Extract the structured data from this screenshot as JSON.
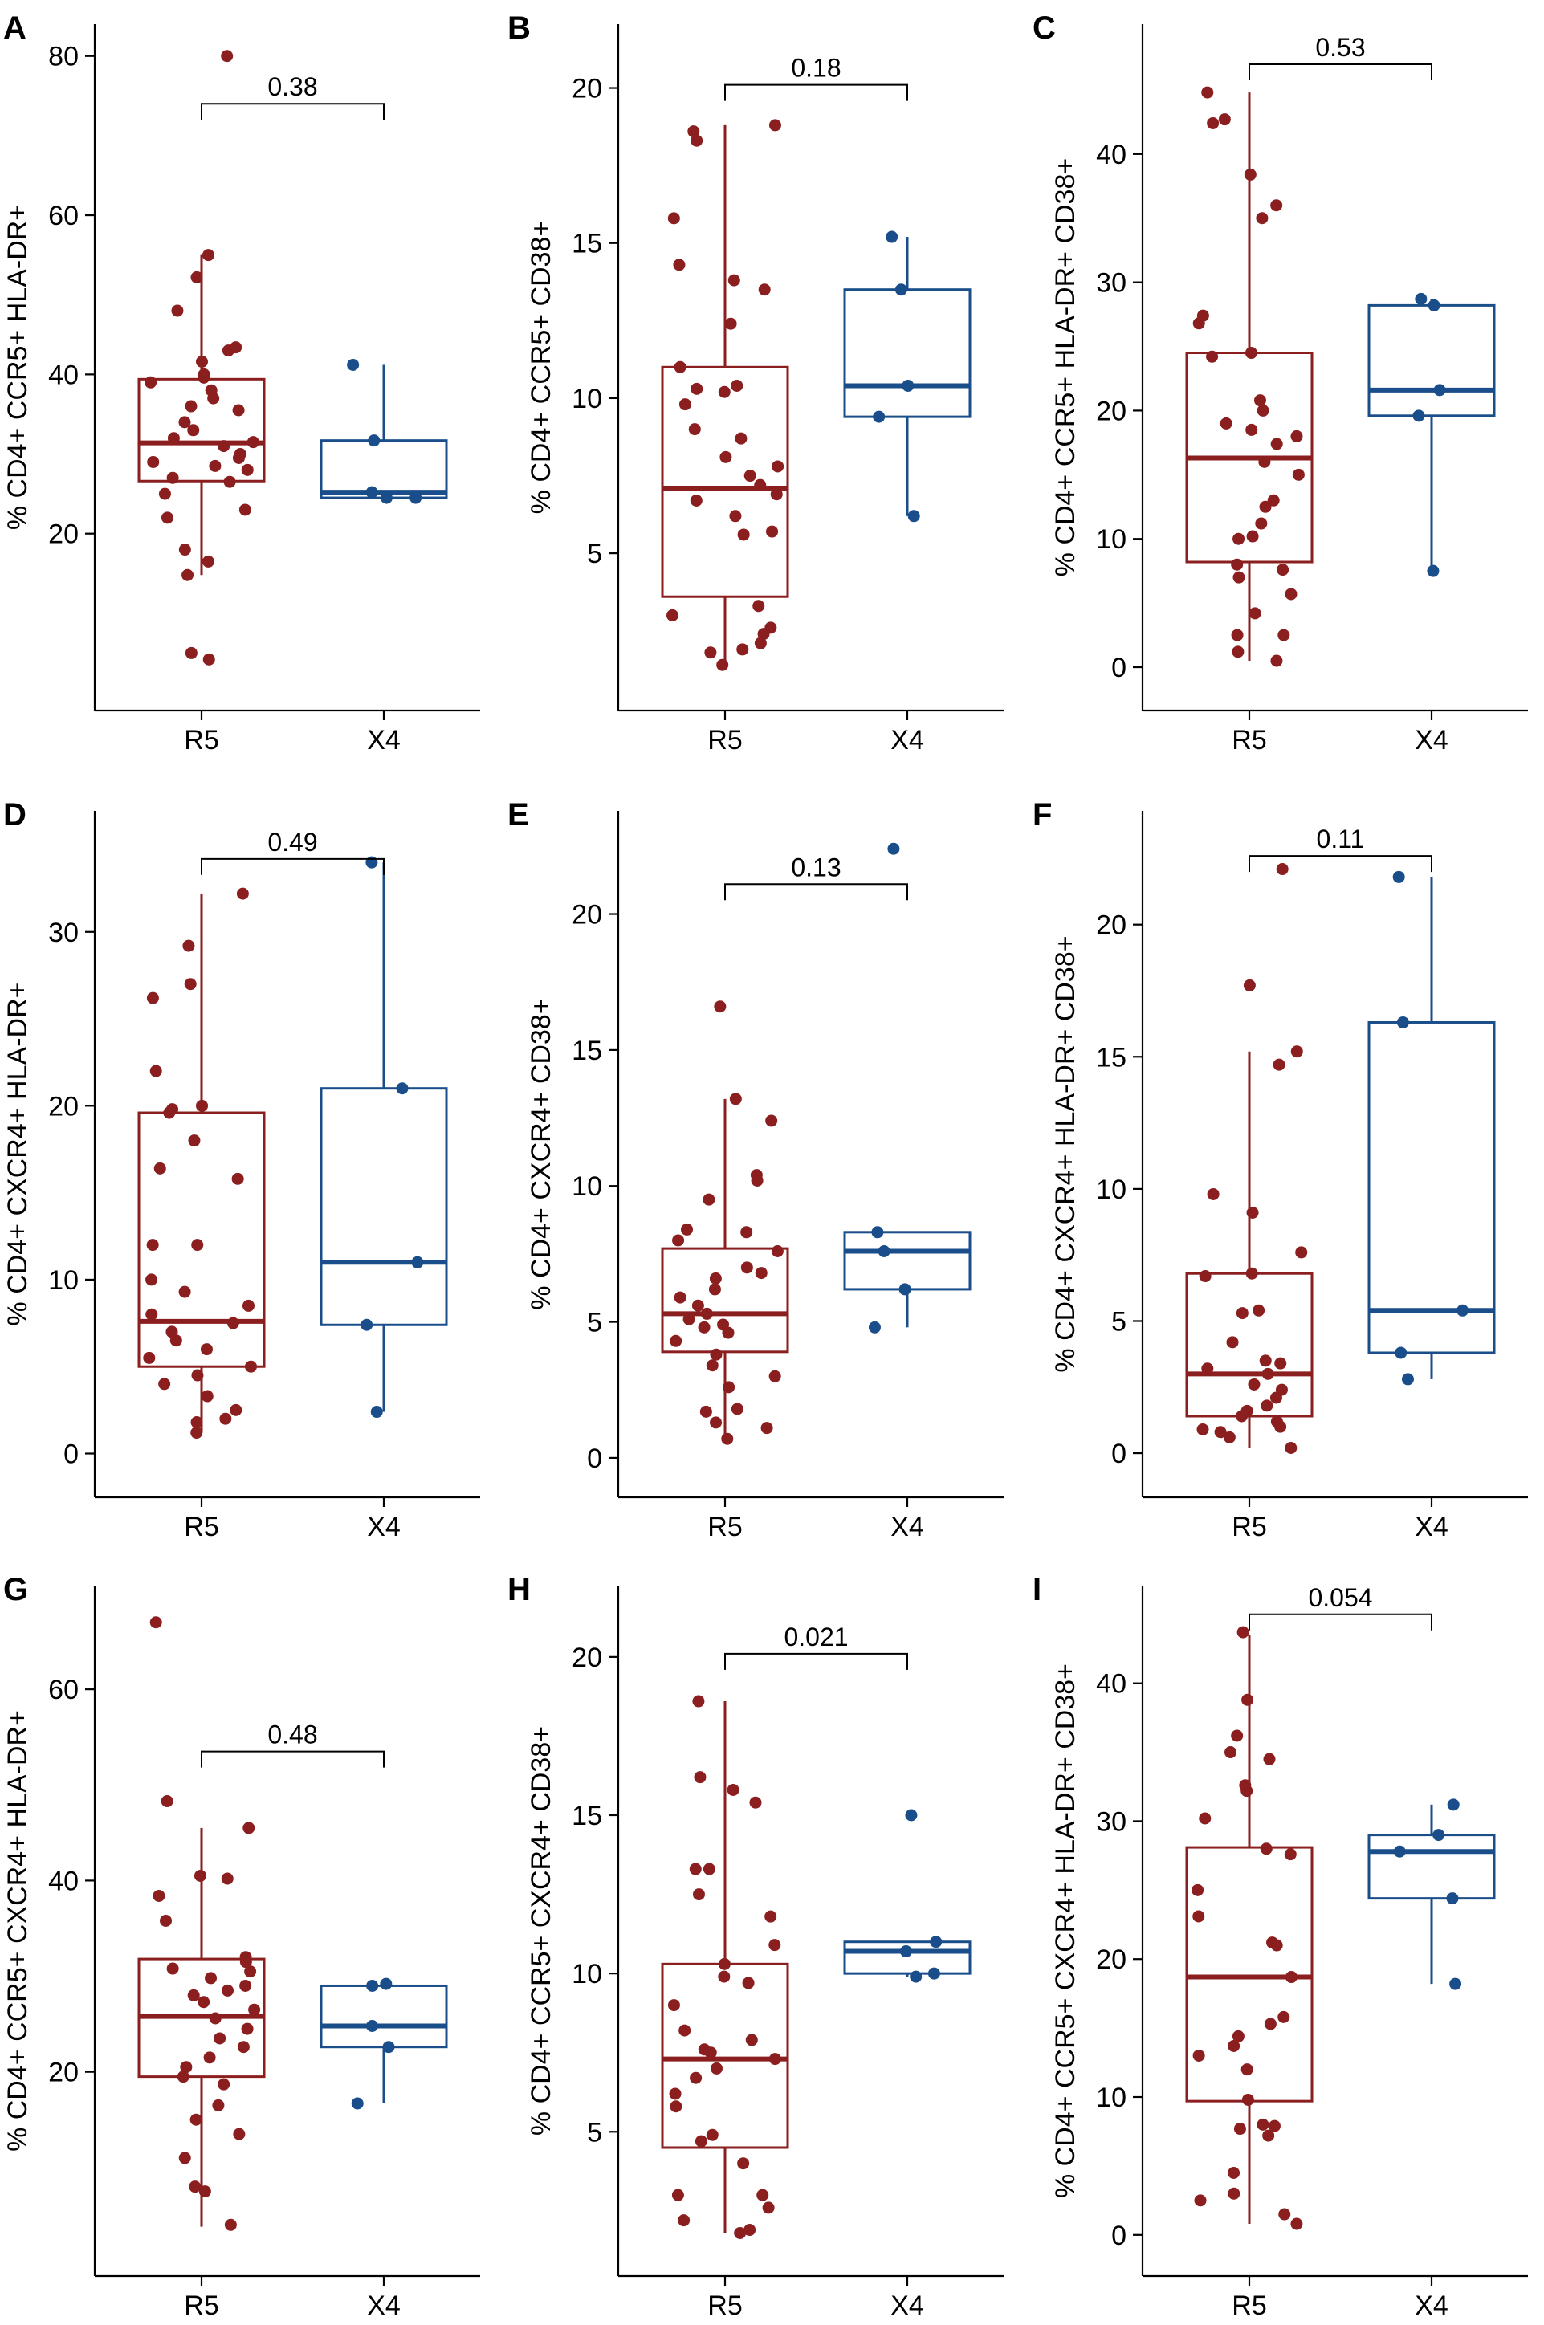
{
  "colors": {
    "R5": "#8b1e1e",
    "X4": "#1a4e8a"
  },
  "chart_data": [
    {
      "type": "box",
      "letter": "A",
      "ylabel": "% CD4+ CCR5+ HLA-DR+",
      "categories": [
        "R5",
        "X4"
      ],
      "yticks": [
        20,
        40,
        60,
        80
      ],
      "ylim": [
        0,
        83
      ],
      "pvalue": "0.38",
      "bracket_y": 74,
      "boxes": [
        {
          "name": "R5",
          "q1": 26.6,
          "median": 31.4,
          "q3": 39.4,
          "wlow": 14.8,
          "whigh": 55
        },
        {
          "name": "X4",
          "q1": 24.5,
          "median": 25.2,
          "q3": 31.7,
          "wlow": 24.5,
          "whigh": 41.2
        }
      ],
      "points": {
        "R5": [
          80,
          55,
          52.2,
          48,
          43.4,
          43,
          41.6,
          40,
          39.6,
          39,
          38,
          37,
          36,
          35.5,
          34,
          33,
          32,
          31.5,
          31,
          30,
          29.5,
          29,
          28.5,
          28,
          27,
          26.5,
          25,
          23,
          22,
          18,
          16.5,
          14.8,
          5,
          4.2
        ],
        "X4": [
          41.2,
          31.7,
          25.2,
          24.5,
          24.5
        ]
      }
    },
    {
      "type": "box",
      "letter": "B",
      "ylabel": "% CD4+ CCR5+ CD38+",
      "categories": [
        "R5",
        "X4"
      ],
      "yticks": [
        5,
        10,
        15,
        20
      ],
      "ylim": [
        0.5,
        21.8
      ],
      "pvalue": "0.18",
      "bracket_y": 20.1,
      "boxes": [
        {
          "name": "R5",
          "q1": 3.6,
          "median": 7.1,
          "q3": 11.0,
          "wlow": 1.4,
          "whigh": 18.8
        },
        {
          "name": "X4",
          "q1": 9.4,
          "median": 10.4,
          "q3": 13.5,
          "wlow": 6.2,
          "whigh": 15.2
        }
      ],
      "points": {
        "R5": [
          18.8,
          18.6,
          18.3,
          15.8,
          14.3,
          13.8,
          13.5,
          12.4,
          11.0,
          10.4,
          10.3,
          10.2,
          9.8,
          9.0,
          8.7,
          8.1,
          7.8,
          7.5,
          7.2,
          6.9,
          6.7,
          6.2,
          5.7,
          5.6,
          3.3,
          3.0,
          2.6,
          2.4,
          2.1,
          1.9,
          1.8,
          1.4
        ],
        "X4": [
          15.2,
          13.5,
          10.4,
          9.4,
          6.2
        ]
      }
    },
    {
      "type": "box",
      "letter": "C",
      "ylabel": "% CD4+ CCR5+ HLA-DR+ CD38+",
      "categories": [
        "R5",
        "X4"
      ],
      "yticks": [
        0,
        10,
        20,
        30,
        40
      ],
      "ylim": [
        -2,
        49.5
      ],
      "pvalue": "0.53",
      "bracket_y": 47,
      "boxes": [
        {
          "name": "R5",
          "q1": 8.2,
          "median": 16.3,
          "q3": 24.5,
          "wlow": 0.5,
          "whigh": 44.8
        },
        {
          "name": "X4",
          "q1": 19.6,
          "median": 21.6,
          "q3": 28.2,
          "wlow": 7.5,
          "whigh": 28.7
        }
      ],
      "points": {
        "R5": [
          44.8,
          42.7,
          42.4,
          38.4,
          36.0,
          35.0,
          27.4,
          26.8,
          24.5,
          24.2,
          20.8,
          20.0,
          19.0,
          18.5,
          18.0,
          17.4,
          16.0,
          15.0,
          13.0,
          12.5,
          11.2,
          10.2,
          10.0,
          8.0,
          7.6,
          7.0,
          5.7,
          4.2,
          2.5,
          2.5,
          1.2,
          0.5
        ],
        "X4": [
          28.7,
          28.2,
          21.6,
          19.6,
          7.5
        ]
      }
    },
    {
      "type": "box",
      "letter": "D",
      "ylabel": "% CD4+ CXCR4+ HLA-DR+",
      "categories": [
        "R5",
        "X4"
      ],
      "yticks": [
        0,
        10,
        20,
        30
      ],
      "ylim": [
        -1.5,
        36.5
      ],
      "pvalue": "0.49",
      "bracket_y": 34.2,
      "boxes": [
        {
          "name": "R5",
          "q1": 5.0,
          "median": 7.6,
          "q3": 19.6,
          "wlow": 1.2,
          "whigh": 32.2
        },
        {
          "name": "X4",
          "q1": 7.4,
          "median": 11.0,
          "q3": 21.0,
          "wlow": 2.4,
          "whigh": 34.0
        }
      ],
      "points": {
        "R5": [
          32.2,
          29.2,
          27.0,
          26.2,
          22.0,
          20.0,
          19.8,
          19.6,
          18.0,
          16.4,
          15.8,
          12.0,
          12.0,
          10.0,
          9.3,
          8.5,
          8.0,
          7.5,
          7.0,
          6.5,
          6.0,
          5.5,
          5.0,
          4.5,
          4.0,
          3.3,
          2.5,
          2.0,
          1.8,
          1.2
        ],
        "X4": [
          34.0,
          21.0,
          11.0,
          7.4,
          2.4
        ]
      }
    },
    {
      "type": "box",
      "letter": "E",
      "ylabel": "% CD4+ CXCR4+ CD38+",
      "categories": [
        "R5",
        "X4"
      ],
      "yticks": [
        0,
        5,
        10,
        15,
        20
      ],
      "ylim": [
        -0.8,
        23.5
      ],
      "pvalue": "0.13",
      "bracket_y": 21.1,
      "boxes": [
        {
          "name": "R5",
          "q1": 3.9,
          "median": 5.3,
          "q3": 7.7,
          "wlow": 0.7,
          "whigh": 13.2
        },
        {
          "name": "X4",
          "q1": 6.2,
          "median": 7.6,
          "q3": 8.3,
          "wlow": 4.8,
          "whigh": 8.3
        }
      ],
      "points": {
        "R5": [
          16.6,
          13.2,
          12.4,
          10.4,
          10.2,
          9.5,
          8.4,
          8.3,
          8.0,
          7.6,
          7.0,
          6.8,
          6.6,
          6.2,
          5.9,
          5.6,
          5.3,
          5.1,
          4.9,
          4.8,
          4.6,
          4.3,
          3.8,
          3.4,
          3.0,
          2.6,
          1.8,
          1.7,
          1.3,
          1.1,
          0.7
        ],
        "X4": [
          22.4,
          8.3,
          7.6,
          6.2,
          4.8
        ]
      }
    },
    {
      "type": "box",
      "letter": "F",
      "ylabel": "% CD4+ CXCR4+ HLA-DR+ CD38+",
      "categories": [
        "R5",
        "X4"
      ],
      "yticks": [
        0,
        5,
        10,
        15,
        20
      ],
      "ylim": [
        -1,
        24
      ],
      "pvalue": "0.11",
      "bracket_y": 22.6,
      "boxes": [
        {
          "name": "R5",
          "q1": 1.4,
          "median": 3.0,
          "q3": 6.8,
          "wlow": 0.2,
          "whigh": 15.2
        },
        {
          "name": "X4",
          "q1": 3.8,
          "median": 5.4,
          "q3": 16.3,
          "wlow": 2.8,
          "whigh": 21.8
        }
      ],
      "points": {
        "R5": [
          22.1,
          17.7,
          15.2,
          14.7,
          9.8,
          9.1,
          7.6,
          6.8,
          6.7,
          5.4,
          5.3,
          4.2,
          3.5,
          3.4,
          3.2,
          3.0,
          2.6,
          2.4,
          2.1,
          1.8,
          1.6,
          1.4,
          1.2,
          1.0,
          0.9,
          0.8,
          0.6,
          0.2
        ],
        "X4": [
          21.8,
          16.3,
          5.4,
          3.8,
          2.8
        ]
      }
    },
    {
      "type": "box",
      "letter": "G",
      "ylabel": "% CD4+ CCR5+ CXCR4+ HLA-DR+",
      "categories": [
        "R5",
        "X4"
      ],
      "yticks": [
        20,
        40,
        60
      ],
      "ylim": [
        0.5,
        70
      ],
      "pvalue": "0.48",
      "bracket_y": 53.5,
      "boxes": [
        {
          "name": "R5",
          "q1": 19.5,
          "median": 25.8,
          "q3": 31.8,
          "wlow": 3.8,
          "whigh": 45.5
        },
        {
          "name": "X4",
          "q1": 22.6,
          "median": 24.8,
          "q3": 29.0,
          "wlow": 16.7,
          "whigh": 29.2
        }
      ],
      "points": {
        "R5": [
          67.0,
          48.3,
          45.5,
          40.5,
          40.2,
          38.4,
          35.8,
          32.0,
          31.5,
          30.8,
          30.5,
          29.8,
          29.0,
          28.5,
          28.0,
          27.3,
          26.5,
          25.6,
          24.5,
          23.5,
          22.6,
          21.5,
          20.5,
          19.5,
          18.7,
          16.5,
          15.0,
          13.5,
          11.0,
          8.0,
          7.5,
          4.0
        ],
        "X4": [
          29.2,
          29.0,
          24.8,
          22.6,
          16.7
        ]
      }
    },
    {
      "type": "box",
      "letter": "H",
      "ylabel": "% CD4+ CCR5+ CXCR4+ CD38+",
      "categories": [
        "R5",
        "X4"
      ],
      "yticks": [
        5,
        10,
        15,
        20
      ],
      "ylim": [
        1,
        22
      ],
      "pvalue": "0.021",
      "bracket_y": 20.1,
      "boxes": [
        {
          "name": "R5",
          "q1": 4.5,
          "median": 7.3,
          "q3": 10.3,
          "wlow": 1.8,
          "whigh": 18.6
        },
        {
          "name": "X4",
          "q1": 10.0,
          "median": 10.7,
          "q3": 11.0,
          "wlow": 9.9,
          "whigh": 11.0
        }
      ],
      "points": {
        "R5": [
          18.6,
          16.2,
          15.8,
          15.4,
          13.3,
          13.3,
          12.5,
          11.8,
          10.9,
          10.3,
          9.9,
          9.7,
          9.0,
          8.2,
          7.9,
          7.6,
          7.5,
          7.3,
          7.0,
          6.7,
          6.2,
          5.8,
          4.9,
          4.7,
          4.0,
          3.0,
          3.0,
          2.6,
          2.2,
          1.9,
          1.8
        ],
        "X4": [
          15.0,
          11.0,
          10.7,
          10.0,
          9.9
        ]
      }
    },
    {
      "type": "box",
      "letter": "I",
      "ylabel": "% CD4+ CCR5+ CXCR4+ HLA-DR+ CD38+",
      "categories": [
        "R5",
        "X4"
      ],
      "yticks": [
        0,
        10,
        20,
        30,
        40
      ],
      "ylim": [
        -1.7,
        46.5
      ],
      "pvalue": "0.054",
      "bracket_y": 45,
      "boxes": [
        {
          "name": "R5",
          "q1": 9.7,
          "median": 18.7,
          "q3": 28.1,
          "wlow": 0.8,
          "whigh": 43.5
        },
        {
          "name": "X4",
          "q1": 24.4,
          "median": 27.8,
          "q3": 29.0,
          "wlow": 18.2,
          "whigh": 31.2
        }
      ],
      "points": {
        "R5": [
          43.7,
          38.8,
          36.2,
          35.0,
          34.5,
          32.6,
          32.2,
          30.2,
          28.0,
          27.6,
          25.0,
          23.1,
          21.2,
          21.0,
          18.7,
          15.8,
          15.3,
          14.4,
          13.7,
          13.0,
          12.0,
          9.8,
          8.0,
          7.9,
          7.7,
          7.2,
          4.5,
          3.0,
          2.5,
          1.5,
          0.8
        ],
        "X4": [
          31.2,
          29.0,
          27.8,
          24.4,
          18.2
        ]
      }
    }
  ]
}
